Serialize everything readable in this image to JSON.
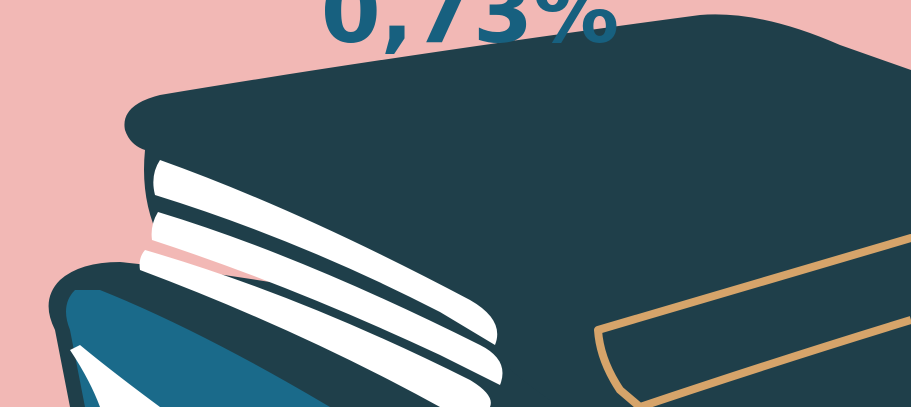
{
  "headline": "0,73%"
}
